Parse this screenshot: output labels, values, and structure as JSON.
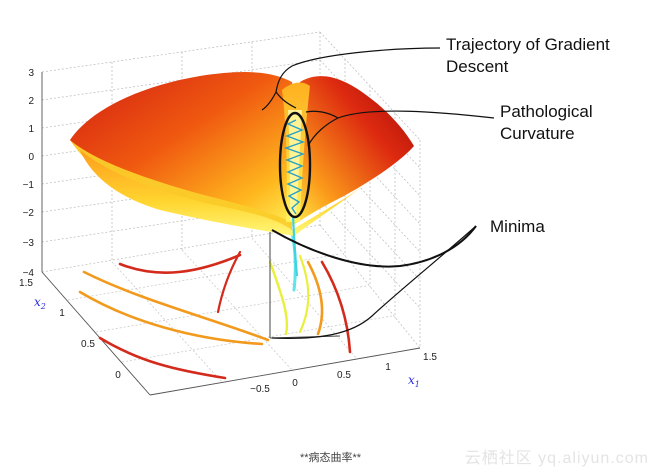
{
  "annotations": {
    "trajectory_line1": "Trajectory of Gradient",
    "trajectory_line2": "Descent",
    "pathological_line1": "Pathological",
    "pathological_line2": "Curvature",
    "minima": "Minima"
  },
  "z_axis": {
    "ticks": [
      "3",
      "2",
      "1",
      "0",
      "−1",
      "−2",
      "−3",
      "−4"
    ]
  },
  "x1_axis": {
    "label": "x",
    "subscript": "1",
    "ticks": [
      "−0.5",
      "0",
      "0.5",
      "1",
      "1.5"
    ]
  },
  "x2_axis": {
    "label": "x",
    "subscript": "2",
    "ticks": [
      "1.5",
      "1",
      "0.5",
      "0"
    ]
  },
  "caption": "**病态曲率**",
  "watermark": "云栖社区 yq.aliyun.com",
  "colors": {
    "surface_high": "#b40d0d",
    "surface_mid": "#f26a0f",
    "surface_low": "#ffe93a",
    "contour_red": "#d42a1c",
    "contour_orange": "#f29a1e",
    "contour_yellow": "#e9f03c",
    "trajectory": "#28a0c8",
    "annotation_lines": "#111111"
  }
}
